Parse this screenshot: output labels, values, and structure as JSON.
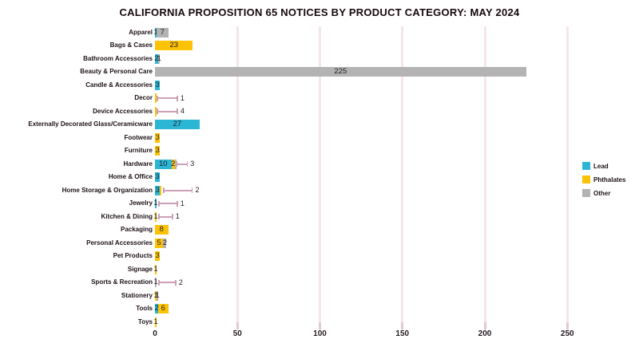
{
  "colors": {
    "lead": "#2cb6d6",
    "phthalates": "#fcc306",
    "other": "#b3b3b3",
    "whisker": "#cc9fb6",
    "gridline": "#f5e5ec",
    "tick_stub": "#e5c6d5",
    "text": "#1f161c"
  },
  "legend": {
    "items": [
      {
        "label": "Lead",
        "color_key": "lead"
      },
      {
        "label": "Phthalates",
        "color_key": "phthalates"
      },
      {
        "label": "Other",
        "color_key": "other"
      }
    ]
  },
  "chart_data": {
    "type": "bar",
    "orientation": "horizontal",
    "stacked": true,
    "title": "CALIFORNIA PROPOSITION 65 NOTICES BY PRODUCT CATEGORY: MAY 2024",
    "xlabel": "",
    "ylabel": "",
    "x_ticks": [
      0,
      50,
      100,
      150,
      200,
      250
    ],
    "xlim": [
      0,
      285
    ],
    "grid": true,
    "legend_position": "right",
    "series_names": [
      "Lead",
      "Phthalates",
      "Other"
    ],
    "rows": [
      {
        "category": "Apparel",
        "segments": [
          {
            "series": "lead",
            "value": 1,
            "label": "1"
          },
          {
            "series": "other",
            "value": 7,
            "label": "7"
          }
        ],
        "whisker": null
      },
      {
        "category": "Bags & Cases",
        "segments": [
          {
            "series": "phthalates",
            "value": 23,
            "label": "23"
          }
        ],
        "whisker": null
      },
      {
        "category": "Bathroom Accessories",
        "segments": [
          {
            "series": "lead",
            "value": 2,
            "label": "2"
          },
          {
            "series": "other",
            "value": 1,
            "label": "1"
          }
        ],
        "whisker": null
      },
      {
        "category": "Beauty & Personal Care",
        "segments": [
          {
            "series": "other",
            "value": 225,
            "label": "225"
          }
        ],
        "whisker": null
      },
      {
        "category": "Candle & Accessories",
        "segments": [
          {
            "series": "lead",
            "value": 3,
            "label": "3"
          }
        ],
        "whisker": null
      },
      {
        "category": "Decor",
        "segments": [
          {
            "series": "phthalates",
            "value": 1,
            "label": ""
          }
        ],
        "whisker": {
          "start": 1,
          "end": 14,
          "label": "1"
        }
      },
      {
        "category": "Device Accessories",
        "segments": [
          {
            "series": "phthalates",
            "value": 1,
            "label": ""
          }
        ],
        "whisker": {
          "start": 1,
          "end": 14,
          "label": "4"
        }
      },
      {
        "category": "Externally Decorated Glass/Ceramicware",
        "segments": [
          {
            "series": "lead",
            "value": 27,
            "label": "27"
          }
        ],
        "whisker": null
      },
      {
        "category": "Footwear",
        "segments": [
          {
            "series": "phthalates",
            "value": 3,
            "label": "3"
          }
        ],
        "whisker": null
      },
      {
        "category": "Furniture",
        "segments": [
          {
            "series": "phthalates",
            "value": 3,
            "label": "3"
          }
        ],
        "whisker": null
      },
      {
        "category": "Hardware",
        "segments": [
          {
            "series": "lead",
            "value": 10,
            "label": "10"
          },
          {
            "series": "phthalates",
            "value": 2,
            "label": "2"
          },
          {
            "series": "other",
            "value": 1,
            "label": ""
          }
        ],
        "whisker": {
          "start": 13,
          "end": 20,
          "label": "3"
        }
      },
      {
        "category": "Home & Office",
        "segments": [
          {
            "series": "lead",
            "value": 3,
            "label": "3"
          }
        ],
        "whisker": null
      },
      {
        "category": "Home Storage & Organization",
        "segments": [
          {
            "series": "lead",
            "value": 3,
            "label": "3"
          },
          {
            "series": "phthalates",
            "value": 1,
            "label": ""
          }
        ],
        "whisker": {
          "start": 5,
          "end": 23,
          "label": "2"
        }
      },
      {
        "category": "Jewelry",
        "segments": [
          {
            "series": "lead",
            "value": 1,
            "label": "1"
          }
        ],
        "whisker": {
          "start": 2,
          "end": 14,
          "label": "1"
        }
      },
      {
        "category": "Kitchen & Dining",
        "segments": [
          {
            "series": "phthalates",
            "value": 1,
            "label": "1"
          }
        ],
        "whisker": {
          "start": 2,
          "end": 11,
          "label": "1"
        }
      },
      {
        "category": "Packaging",
        "segments": [
          {
            "series": "phthalates",
            "value": 8,
            "label": "8"
          }
        ],
        "whisker": null
      },
      {
        "category": "Personal Accessories",
        "segments": [
          {
            "series": "phthalates",
            "value": 5,
            "label": "5"
          },
          {
            "series": "other",
            "value": 2,
            "label": "2"
          }
        ],
        "whisker": null
      },
      {
        "category": "Pet Products",
        "segments": [
          {
            "series": "phthalates",
            "value": 3,
            "label": "3"
          }
        ],
        "whisker": null
      },
      {
        "category": "Signage",
        "segments": [
          {
            "series": "phthalates",
            "value": 1,
            "label": "1"
          }
        ],
        "whisker": null
      },
      {
        "category": "Sports & Recreation",
        "segments": [
          {
            "series": "other",
            "value": 1,
            "label": "1"
          }
        ],
        "whisker": {
          "start": 2,
          "end": 13,
          "label": "2"
        }
      },
      {
        "category": "Stationery",
        "segments": [
          {
            "series": "phthalates",
            "value": 1,
            "label": "1"
          },
          {
            "series": "other",
            "value": 1,
            "label": "1"
          }
        ],
        "whisker": null
      },
      {
        "category": "Tools",
        "segments": [
          {
            "series": "lead",
            "value": 2,
            "label": "2"
          },
          {
            "series": "phthalates",
            "value": 6,
            "label": "6"
          }
        ],
        "whisker": null
      },
      {
        "category": "Toys",
        "segments": [
          {
            "series": "phthalates",
            "value": 1,
            "label": "1"
          }
        ],
        "whisker": null
      }
    ]
  }
}
